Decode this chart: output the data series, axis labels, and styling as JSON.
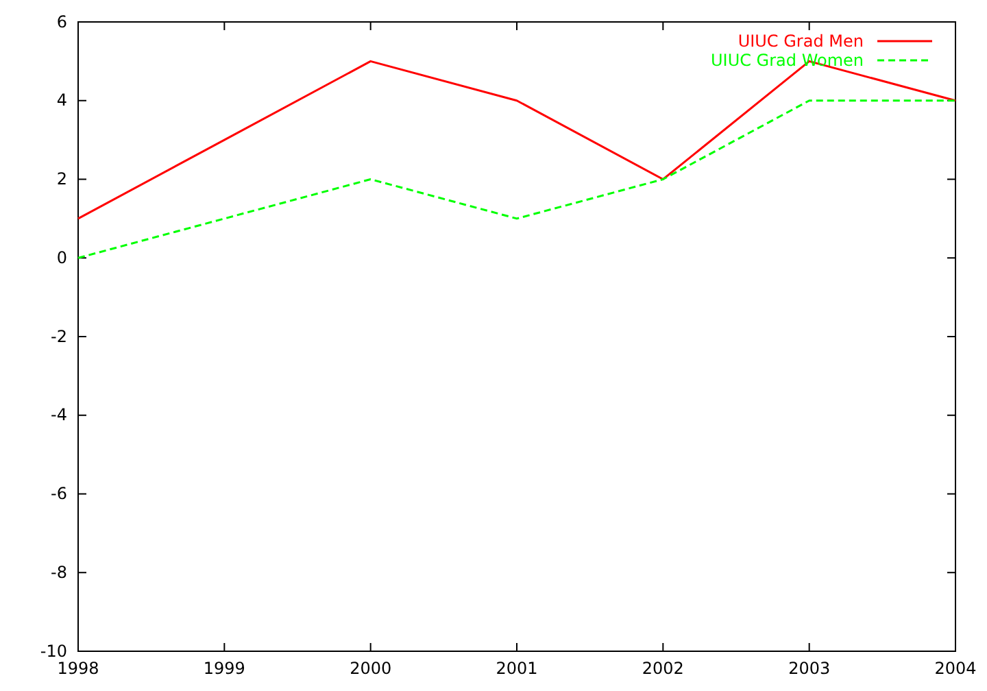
{
  "chart_data": {
    "type": "line",
    "x": [
      1998,
      1999,
      2000,
      2001,
      2002,
      2003,
      2004
    ],
    "xlim": [
      1998,
      2004
    ],
    "xticks": [
      1998,
      1999,
      2000,
      2001,
      2002,
      2003,
      2004
    ],
    "ylim": [
      -10,
      6
    ],
    "yticks": [
      -10,
      -8,
      -6,
      -4,
      -2,
      0,
      2,
      4,
      6
    ],
    "legend": "top right",
    "grid": false,
    "series": [
      {
        "name": "UIUC Grad Men",
        "color": "#ff0000",
        "line_style": "solid",
        "values": [
          1,
          3,
          5,
          4,
          2,
          5,
          4
        ]
      },
      {
        "name": "UIUC Grad Women",
        "color": "#00ff00",
        "line_style": "dashed",
        "values": [
          0,
          1,
          2,
          1,
          2,
          4,
          4
        ]
      }
    ]
  }
}
